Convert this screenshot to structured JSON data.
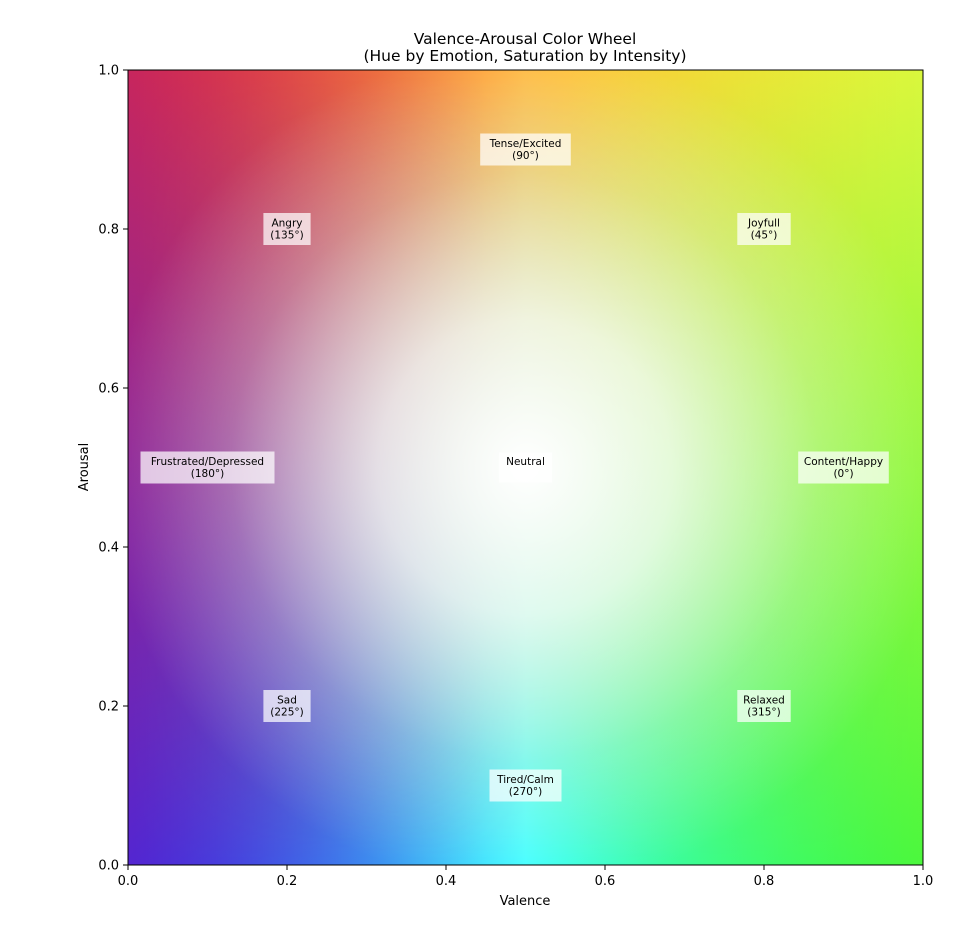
{
  "chart_data": {
    "type": "heatmap",
    "title_line1": "Valence-Arousal Color Wheel",
    "title_line2": "(Hue by Emotion, Saturation by Intensity)",
    "xlabel": "Valence",
    "ylabel": "Arousal",
    "xlim": [
      0,
      1
    ],
    "ylim": [
      0,
      1
    ],
    "xticks": [
      "0.0",
      "0.2",
      "0.4",
      "0.6",
      "0.8",
      "1.0"
    ],
    "yticks": [
      "0.0",
      "0.2",
      "0.4",
      "0.6",
      "0.8",
      "1.0"
    ],
    "grid": false,
    "corner_colors": {
      "top_left": "#ff0000",
      "top_right": "#ffff00",
      "bottom_left": "#0000ff",
      "bottom_right": "#00ff00",
      "center": "#ffffff",
      "top_mid": "#ffbb44",
      "bottom_mid": "#44ffff",
      "left_mid": "#9944aa",
      "right_mid": "#aaee88"
    },
    "annotations": [
      {
        "x": 0.5,
        "y": 0.9,
        "line1": "Tense/Excited",
        "line2": "(90°)"
      },
      {
        "x": 0.2,
        "y": 0.8,
        "line1": "Angry",
        "line2": "(135°)"
      },
      {
        "x": 0.8,
        "y": 0.8,
        "line1": "Joyfull",
        "line2": "(45°)"
      },
      {
        "x": 0.1,
        "y": 0.5,
        "line1": "Frustrated/Depressed",
        "line2": "(180°)"
      },
      {
        "x": 0.5,
        "y": 0.5,
        "line1": "Neutral",
        "line2": ""
      },
      {
        "x": 0.9,
        "y": 0.5,
        "line1": "Content/Happy",
        "line2": "(0°)"
      },
      {
        "x": 0.2,
        "y": 0.2,
        "line1": "Sad",
        "line2": "(225°)"
      },
      {
        "x": 0.8,
        "y": 0.2,
        "line1": "Relaxed",
        "line2": "(315°)"
      },
      {
        "x": 0.5,
        "y": 0.1,
        "line1": "Tired/Calm",
        "line2": "(270°)"
      }
    ]
  }
}
